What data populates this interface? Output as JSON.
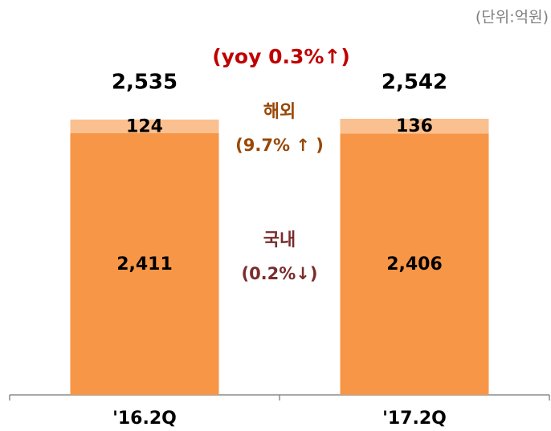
{
  "chart_data": {
    "type": "stacked_bar",
    "unit_note": "(단위:억원)",
    "categories": [
      "'16.2Q",
      "'17.2Q"
    ],
    "series": [
      {
        "name": "국내",
        "color": "#f79646",
        "values": [
          2411,
          2406
        ],
        "value_labels": [
          "2,411",
          "2,406"
        ]
      },
      {
        "name": "해외",
        "color": "#fac090",
        "values": [
          124,
          136
        ]
      }
    ],
    "totals": {
      "values": [
        2535,
        2542
      ],
      "value_labels": [
        "2,535",
        "2,542"
      ]
    },
    "annotations": {
      "yoy": "(yoy  0.3%↑)",
      "overseas_name": "해외",
      "overseas_change": "(9.7% ↑ )",
      "domestic_name": "국내",
      "domestic_change": "(0.2%↓)"
    }
  }
}
